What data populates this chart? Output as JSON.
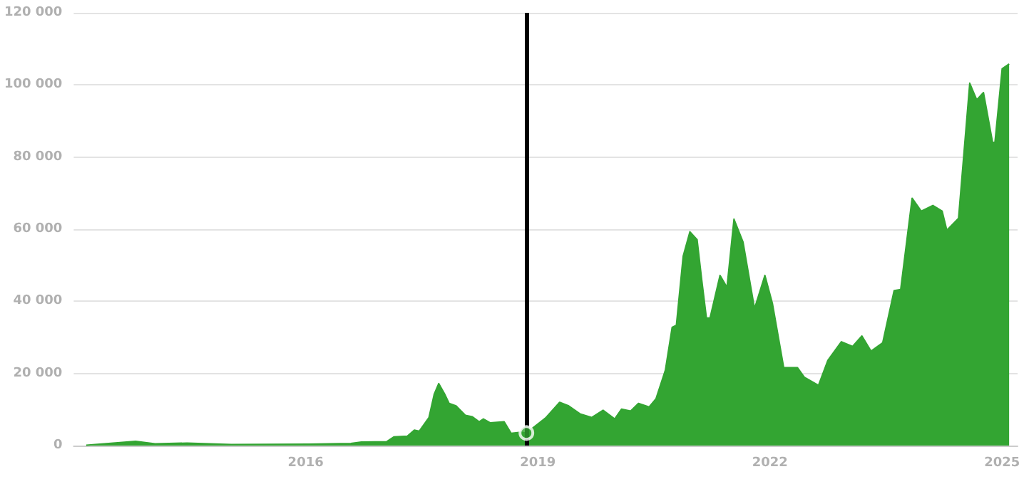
{
  "chart_data": {
    "type": "area",
    "series": [
      {
        "color": "#33a532",
        "marker": "none",
        "x": [
          "2013-03-01",
          "2013-10-20",
          "2014-01-20",
          "2014-06-20",
          "2015-01-15",
          "2016-01-15",
          "2016-08-01",
          "2016-09-20",
          "2017-01-18",
          "2017-02-20",
          "2017-04-25",
          "2017-05-28",
          "2017-06-20",
          "2017-08-05",
          "2017-08-30",
          "2017-09-20",
          "2017-10-18",
          "2017-11-08",
          "2017-12-11",
          "2018-01-24",
          "2018-02-26",
          "2018-03-30",
          "2018-04-19",
          "2018-05-22",
          "2018-07-26",
          "2018-08-28",
          "2018-10-12",
          "2018-11-08",
          "2019-02-09",
          "2019-04-14",
          "2019-05-27",
          "2019-07-19",
          "2019-09-12",
          "2019-11-05",
          "2019-12-30",
          "2020-01-31",
          "2020-03-14",
          "2020-04-20",
          "2020-06-09",
          "2020-07-12",
          "2020-08-25",
          "2020-09-26",
          "2020-10-16",
          "2020-11-17",
          "2020-12-19",
          "2021-01-22",
          "2021-02-13",
          "2021-03-07",
          "2021-03-24",
          "2021-05-10",
          "2021-06-12",
          "2021-07-15",
          "2021-08-27",
          "2021-10-20",
          "2021-12-08",
          "2022-01-13",
          "2022-03-07",
          "2022-05-11",
          "2022-06-13",
          "2022-08-18",
          "2022-10-01",
          "2022-12-04",
          "2023-01-26",
          "2023-03-11",
          "2023-04-23",
          "2023-06-17",
          "2023-08-10",
          "2023-09-10",
          "2023-11-03",
          "2023-12-16",
          "2024-02-09",
          "2024-03-24",
          "2024-04-15",
          "2024-06-09",
          "2024-08-01",
          "2024-09-03",
          "2024-10-05",
          "2024-11-17",
          "2024-11-28",
          "2025-01-01",
          "2025-02-03"
        ],
        "values": [
          100,
          1200,
          500,
          700,
          300,
          400,
          600,
          1000,
          1100,
          2400,
          2600,
          4300,
          4000,
          7800,
          14300,
          17200,
          14300,
          11700,
          11000,
          8400,
          8000,
          6600,
          7400,
          6300,
          6600,
          3400,
          3700,
          3500,
          7800,
          12000,
          11000,
          8800,
          7800,
          9800,
          7400,
          10100,
          9600,
          11700,
          10700,
          13000,
          20900,
          32800,
          33400,
          52500,
          59300,
          57100,
          45900,
          35400,
          35400,
          47200,
          43900,
          62800,
          56400,
          38000,
          47200,
          39300,
          21600,
          21600,
          18900,
          16700,
          23600,
          28800,
          27500,
          30400,
          26200,
          28500,
          43000,
          43300,
          68600,
          65000,
          66600,
          65000,
          59700,
          63000,
          100500,
          95900,
          97900,
          84100,
          84100,
          104500,
          105800
        ]
      },
      {
        "type": "scatter",
        "color": "#33a532",
        "marker": "circle",
        "x": [
          "2018-11-08"
        ],
        "values": [
          3500
        ]
      }
    ],
    "xlim": [
      "2013-01-01",
      "2025-03-15"
    ],
    "xticks": [
      {
        "value": "2016-01-01",
        "label": "2016"
      },
      {
        "value": "2019-01-01",
        "label": "2019"
      },
      {
        "value": "2022-01-01",
        "label": "2022"
      },
      {
        "value": "2025-01-01",
        "label": "2025"
      }
    ],
    "ylim": [
      0,
      120000
    ],
    "yticks": [
      0,
      {
        "value": 20000,
        "label": "20 000"
      },
      {
        "value": 40000,
        "label": "40 000"
      },
      {
        "value": 60000,
        "label": "60 000"
      },
      {
        "value": 80000,
        "label": "80 000"
      },
      {
        "value": 100000,
        "label": "100 000"
      },
      {
        "value": 120000,
        "label": "120 000"
      }
    ],
    "grid": "y",
    "ref_lines": [
      {
        "axis": "x",
        "value": "2018-11-07",
        "color": "#000000",
        "line_style": "solid"
      }
    ]
  }
}
